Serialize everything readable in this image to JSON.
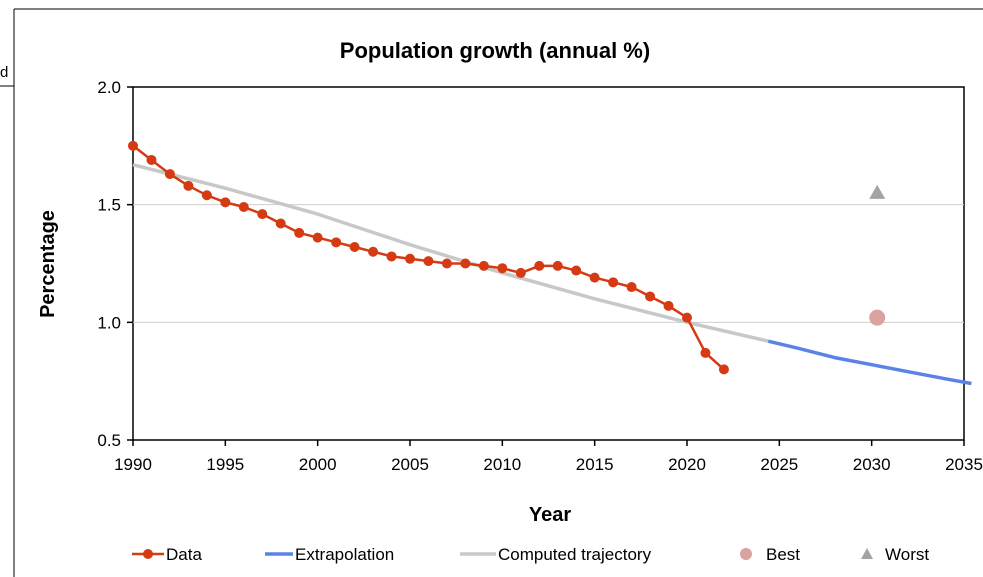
{
  "page_fragments": {
    "left_cutoff": "d"
  },
  "chart_data": {
    "type": "line",
    "title": "Population growth (annual %)",
    "xlabel": "Year",
    "ylabel": "Percentage",
    "xlim": [
      1990,
      2035
    ],
    "ylim": [
      0.5,
      2.0
    ],
    "x_ticks": [
      "1990",
      "1995",
      "2000",
      "2005",
      "2010",
      "2015",
      "2020",
      "2025",
      "2030",
      "2035"
    ],
    "y_ticks": [
      "0.5",
      "1.0",
      "1.5",
      "2.0"
    ],
    "grid": "horizontal",
    "legend_position": "bottom",
    "series": [
      {
        "name": "Data",
        "kind": "line+markers",
        "color": "#d63a13",
        "x": [
          1990,
          1991,
          1992,
          1993,
          1994,
          1995,
          1996,
          1997,
          1998,
          1999,
          2000,
          2001,
          2002,
          2003,
          2004,
          2005,
          2006,
          2007,
          2008,
          2009,
          2010,
          2011,
          2012,
          2013,
          2014,
          2015,
          2016,
          2017,
          2018,
          2019,
          2020,
          2021,
          2022
        ],
        "y": [
          1.75,
          1.69,
          1.63,
          1.58,
          1.54,
          1.51,
          1.49,
          1.46,
          1.42,
          1.38,
          1.36,
          1.34,
          1.32,
          1.3,
          1.28,
          1.27,
          1.26,
          1.25,
          1.25,
          1.24,
          1.23,
          1.21,
          1.24,
          1.24,
          1.22,
          1.19,
          1.17,
          1.15,
          1.11,
          1.07,
          1.02,
          0.87,
          0.8
        ]
      },
      {
        "name": "Extrapolation",
        "kind": "line",
        "color": "#5b82e8",
        "x": [
          2024.4,
          2026,
          2028,
          2030,
          2032,
          2034,
          2035.4
        ],
        "y": [
          0.92,
          0.89,
          0.85,
          0.82,
          0.79,
          0.76,
          0.74
        ]
      },
      {
        "name": "Computed trajectory",
        "kind": "line",
        "color": "#c8c8c8",
        "x": [
          1990,
          1995,
          2000,
          2005,
          2010,
          2015,
          2020,
          2024.4
        ],
        "y": [
          1.67,
          1.57,
          1.46,
          1.33,
          1.21,
          1.1,
          1.0,
          0.92
        ]
      },
      {
        "name": "Best",
        "kind": "point",
        "color": "#d9a3a0",
        "marker": "circle",
        "x": [
          2030.3
        ],
        "y": [
          1.02
        ]
      },
      {
        "name": "Worst",
        "kind": "point",
        "color": "#a3a3a3",
        "marker": "triangle",
        "x": [
          2030.3
        ],
        "y": [
          1.55
        ]
      }
    ]
  }
}
